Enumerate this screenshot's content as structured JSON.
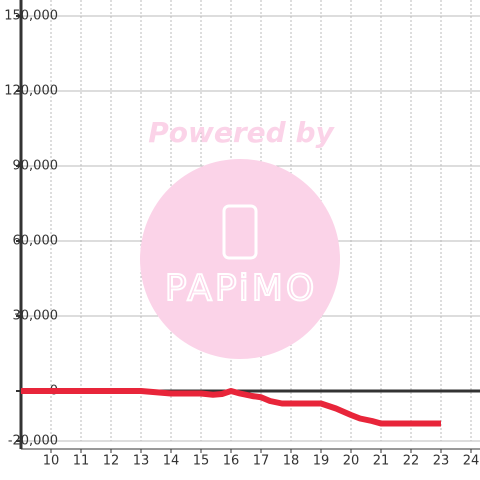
{
  "chart_data": {
    "type": "line",
    "watermark": {
      "caption": "Powered by",
      "logo": "PAPiMO"
    },
    "x": [
      9,
      13,
      13.5,
      14,
      15,
      15.4,
      15.7,
      16,
      16.3,
      16.7,
      17,
      17.3,
      17.7,
      18.5,
      19,
      19.5,
      20,
      20.3,
      20.7,
      21,
      23
    ],
    "series": [
      {
        "color": "#e8253a",
        "values": [
          0,
          0,
          -500,
          -1000,
          -1000,
          -1500,
          -1200,
          0,
          -1000,
          -2000,
          -2500,
          -4000,
          -5000,
          -5000,
          -5000,
          -7000,
          -9600,
          -11000,
          -12000,
          -13000,
          -13000
        ]
      }
    ],
    "xlim": [
      9,
      24.3
    ],
    "xticks": [
      10,
      11,
      12,
      13,
      14,
      15,
      16,
      17,
      18,
      19,
      20,
      21,
      22,
      23,
      24
    ],
    "ylim": [
      -20000,
      150000
    ],
    "yticks": [
      {
        "value": -20000,
        "label": "-20,000"
      },
      0,
      {
        "value": 30000,
        "label": "30,000"
      },
      {
        "value": 60000,
        "label": "60,000"
      },
      {
        "value": 90000,
        "label": "90,000"
      },
      {
        "value": 120000,
        "label": "120,000"
      },
      {
        "value": 150000,
        "label": "150,000"
      }
    ],
    "grid": true
  }
}
